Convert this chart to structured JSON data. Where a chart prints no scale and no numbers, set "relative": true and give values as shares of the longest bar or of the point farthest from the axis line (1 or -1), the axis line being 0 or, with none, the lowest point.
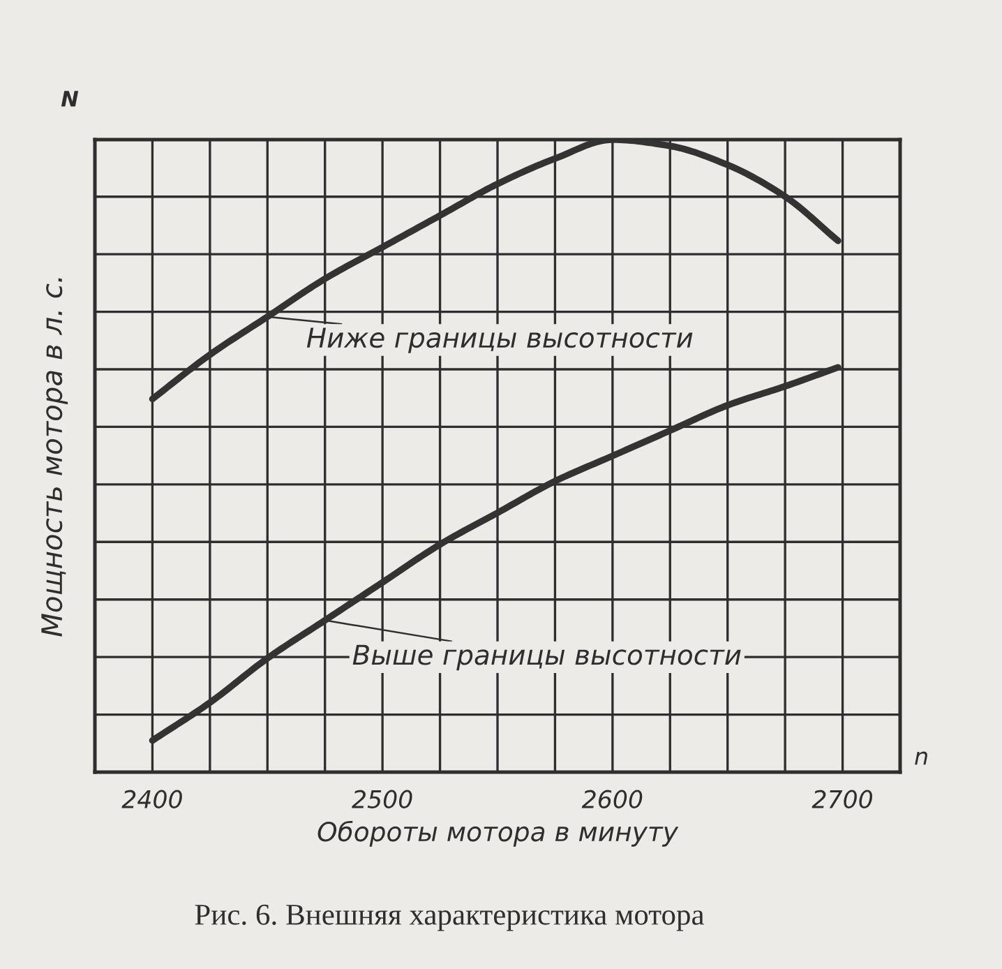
{
  "chart_data": {
    "type": "line",
    "xlabel": "Обороты мотора в минуту",
    "ylabel": "Мощность мотора в л. с.",
    "annotations": [
      "N",
      "n",
      {
        "text": "Ниже границы высотности",
        "x": 2450,
        "y": 0.72
      },
      {
        "text": "Выше границы высотности",
        "x": 2475,
        "y": 0.24
      },
      "Рис. 6. Внешняя характеристика мотора"
    ],
    "relative": true,
    "xlim": [
      2375,
      2725
    ],
    "xticks": [
      2400,
      {
        "value": 2425,
        "label": null
      },
      {
        "value": 2450,
        "label": null
      },
      {
        "value": 2475,
        "label": null
      },
      2500,
      {
        "value": 2525,
        "label": null
      },
      {
        "value": 2550,
        "label": null
      },
      {
        "value": 2575,
        "label": null
      },
      2600,
      {
        "value": 2625,
        "label": null
      },
      {
        "value": 2650,
        "label": null
      },
      {
        "value": 2675,
        "label": null
      },
      2700
    ],
    "grid": true,
    "series": [
      {
        "color": "#333333",
        "x": [
          2400,
          2425,
          2450,
          2475,
          2500,
          2525,
          2550,
          2575,
          2600,
          2625,
          2650,
          2675,
          2698
        ],
        "values": [
          0.59,
          0.66,
          0.72,
          0.78,
          0.83,
          0.88,
          0.93,
          0.97,
          1.0,
          0.99,
          0.96,
          0.91,
          0.84
        ]
      },
      {
        "color": "#333333",
        "x": [
          2400,
          2425,
          2450,
          2475,
          2500,
          2525,
          2550,
          2575,
          2600,
          2625,
          2650,
          2675,
          2698
        ],
        "values": [
          0.05,
          0.11,
          0.18,
          0.24,
          0.3,
          0.36,
          0.41,
          0.46,
          0.5,
          0.54,
          0.58,
          0.61,
          0.64
        ]
      }
    ]
  }
}
